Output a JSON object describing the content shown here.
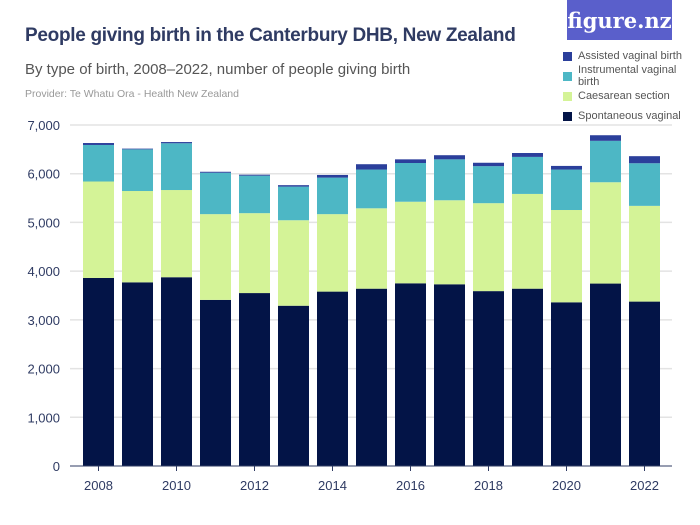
{
  "logo": "figure.nz",
  "chart_data": {
    "type": "bar",
    "stacked": true,
    "title": "People giving birth in the Canterbury DHB, New Zealand",
    "subtitle": "By type of birth, 2008–2022, number of people giving birth",
    "provider": "Provider: Te Whatu Ora - Health New Zealand",
    "xlabel": "",
    "ylabel": "",
    "ylim": [
      0,
      7000
    ],
    "yticks": [
      0,
      1000,
      2000,
      3000,
      4000,
      5000,
      6000,
      7000
    ],
    "ytick_labels": [
      "0",
      "1,000",
      "2,000",
      "3,000",
      "4,000",
      "5,000",
      "6,000",
      "7,000"
    ],
    "xtick_labels": [
      "2008",
      "2010",
      "2012",
      "2014",
      "2016",
      "2018",
      "2020",
      "2022"
    ],
    "grid": true,
    "legend_placement": "top-right",
    "categories": [
      "2008",
      "2009",
      "2010",
      "2011",
      "2012",
      "2013",
      "2014",
      "2015",
      "2016",
      "2017",
      "2018",
      "2019",
      "2020",
      "2021",
      "2022"
    ],
    "series": [
      {
        "name": "Spontaneous vaginal",
        "color": "#031447",
        "values": [
          3860,
          3770,
          3875,
          3410,
          3550,
          3290,
          3580,
          3640,
          3750,
          3730,
          3590,
          3640,
          3360,
          3745,
          3375
        ]
      },
      {
        "name": "Caesarean section",
        "color": "#d4f397",
        "values": [
          1980,
          1875,
          1790,
          1760,
          1640,
          1755,
          1590,
          1650,
          1675,
          1725,
          1805,
          1945,
          1895,
          2080,
          1965
        ]
      },
      {
        "name": "Instrumental vaginal birth",
        "color": "#4db7c5",
        "values": [
          750,
          855,
          960,
          850,
          770,
          690,
          750,
          795,
          795,
          840,
          760,
          760,
          830,
          850,
          875
        ]
      },
      {
        "name": "Assisted vaginal birth",
        "color": "#2b3f9b",
        "values": [
          40,
          15,
          25,
          20,
          20,
          30,
          55,
          110,
          75,
          85,
          70,
          80,
          75,
          115,
          145
        ]
      }
    ]
  }
}
